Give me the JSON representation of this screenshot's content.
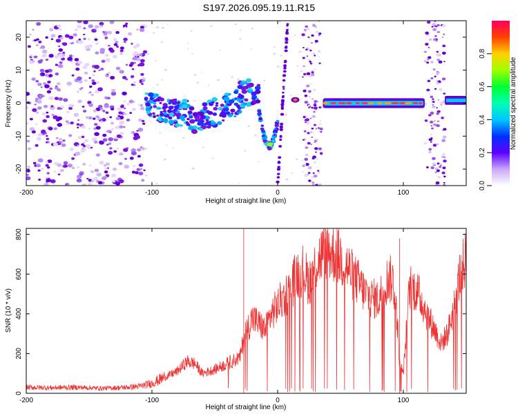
{
  "title": "S197.2026.095.19.11.R15",
  "colors": {
    "snr_line": "#ee3333",
    "spectro_low": "#d9c3f5",
    "spectro_mid": "#7a12e0",
    "axis": "#000000"
  },
  "chart_data": [
    {
      "type": "heatmap",
      "name": "spectrogram",
      "xlabel": "Height of straight line (km)",
      "ylabel": "Frequency (Hz)",
      "xlim": [
        -200,
        150
      ],
      "ylim": [
        -25,
        25
      ],
      "xticks": [
        -200,
        -100,
        0,
        100
      ],
      "yticks": [
        -20,
        -10,
        0,
        10,
        20
      ],
      "colorbar": {
        "label": "Normalized spectral amplitude",
        "range": [
          0,
          1
        ],
        "ticks": [
          0.0,
          0.2,
          0.4,
          0.6,
          0.8
        ]
      },
      "features": [
        {
          "desc": "scattered noise",
          "x_range": [
            -200,
            -105
          ],
          "level": 0.2
        },
        {
          "desc": "wavy band near 0 Hz",
          "x_range": [
            -105,
            -15
          ],
          "level": 0.35
        },
        {
          "desc": "dip to -13 Hz",
          "x_range": [
            -15,
            0
          ],
          "level": 0.6
        },
        {
          "desc": "steep streak",
          "x_range": [
            0,
            8
          ],
          "level": 0.3
        },
        {
          "desc": "strong line at 0 Hz",
          "x_range": [
            36,
            117
          ],
          "level": 0.9
        },
        {
          "desc": "noise band",
          "x_range": [
            117,
            133
          ],
          "level": 0.2
        },
        {
          "desc": "line at 1 Hz",
          "x_range": [
            133,
            150
          ],
          "level": 0.4
        }
      ]
    },
    {
      "type": "line",
      "name": "snr",
      "xlabel": "Height of straight line (km)",
      "ylabel": "SNR (10 * v/v)",
      "xlim": [
        -200,
        150
      ],
      "ylim": [
        0,
        830
      ],
      "xticks": [
        -200,
        -100,
        0,
        100
      ],
      "yticks": [
        0,
        200,
        400,
        600,
        800
      ],
      "series": [
        {
          "name": "SNR",
          "x": [
            -200,
            -180,
            -160,
            -140,
            -120,
            -110,
            -100,
            -90,
            -80,
            -72,
            -66,
            -60,
            -50,
            -40,
            -30,
            -26,
            -20,
            -15,
            -10,
            -5,
            0,
            3,
            10,
            15,
            20,
            25,
            30,
            35,
            40,
            45,
            50,
            55,
            60,
            65,
            70,
            75,
            80,
            85,
            88,
            92,
            95,
            97,
            100,
            105,
            110,
            115,
            120,
            125,
            130,
            135,
            140,
            145,
            150
          ],
          "y": [
            30,
            28,
            30,
            25,
            30,
            35,
            50,
            80,
            110,
            160,
            150,
            100,
            120,
            150,
            180,
            300,
            380,
            350,
            320,
            400,
            440,
            470,
            520,
            600,
            620,
            560,
            640,
            700,
            720,
            700,
            680,
            640,
            590,
            550,
            500,
            480,
            470,
            540,
            580,
            560,
            380,
            150,
            100,
            540,
            520,
            460,
            380,
            320,
            250,
            300,
            420,
            600,
            680
          ]
        }
      ],
      "spikes": [
        {
          "x": -27,
          "y": 840
        },
        {
          "x": 97,
          "y": 780
        }
      ]
    }
  ]
}
